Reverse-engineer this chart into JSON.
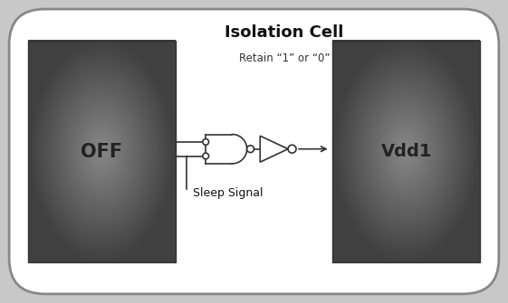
{
  "bg_color": "#c8c8c8",
  "outer_box_facecolor": "#ffffff",
  "outer_box_edge": "#888888",
  "left_box_color_center": "#888888",
  "left_box_color_edge": "#404040",
  "right_box_color_center": "#888888",
  "right_box_color_edge": "#404040",
  "left_box_label": "OFF",
  "right_box_label": "Vdd1",
  "title_main": "Isolation Cell",
  "title_sub": "Retain “1” or “0”",
  "sleep_label": "Sleep Signal",
  "box_label_color": "#222222",
  "line_color": "#333333",
  "gate_fill": "#ffffff",
  "gate_edge": "#333333",
  "title_color": "#111111",
  "subtitle_color": "#333333"
}
